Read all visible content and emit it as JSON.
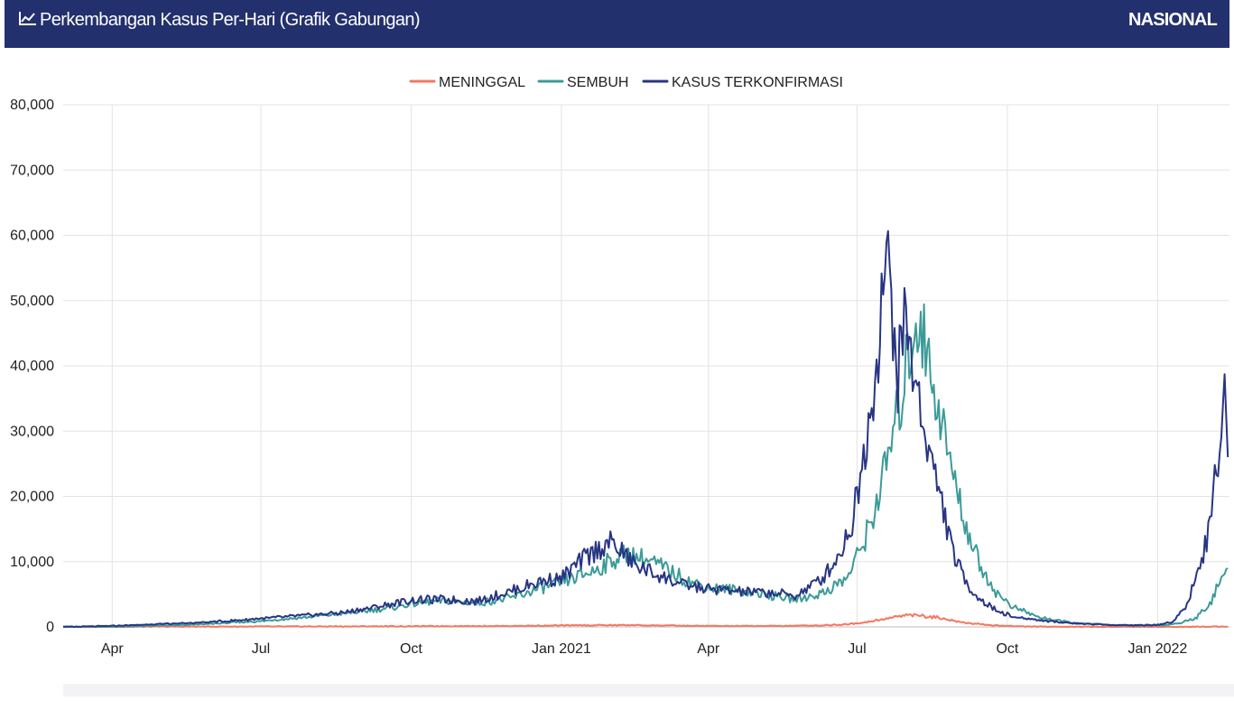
{
  "header": {
    "icon": "line-chart-icon",
    "title": "Perkembangan Kasus Per-Hari (Grafik Gabungan)",
    "badge": "NASIONAL",
    "background": "#23306e"
  },
  "chart_data": {
    "type": "line",
    "title": "Perkembangan Kasus Per-Hari (Grafik Gabungan)",
    "xlabel": "",
    "ylabel": "",
    "xlim": [
      "2020-03-02",
      "2022-02-14"
    ],
    "ylim": [
      0,
      80000
    ],
    "yticks": [
      0,
      10000,
      20000,
      30000,
      40000,
      50000,
      60000,
      70000,
      80000
    ],
    "ytick_labels": [
      "0",
      "10,000",
      "20,000",
      "30,000",
      "40,000",
      "50,000",
      "60,000",
      "70,000",
      "80,000"
    ],
    "xticks": [
      "2020-04-01",
      "2020-07-01",
      "2020-10-01",
      "2021-01-01",
      "2021-04-01",
      "2021-07-01",
      "2021-10-01",
      "2022-01-01"
    ],
    "xtick_labels": [
      "Apr",
      "Jul",
      "Oct",
      "Jan 2021",
      "Apr",
      "Jul",
      "Oct",
      "Jan 2022"
    ],
    "grid": true,
    "legend_position": "top-center",
    "series": [
      {
        "name": "MENINGGAL",
        "color": "#f4775f",
        "points": [
          [
            "2020-03-02",
            0
          ],
          [
            "2020-04-15",
            30
          ],
          [
            "2020-06-01",
            50
          ],
          [
            "2020-08-01",
            70
          ],
          [
            "2020-10-01",
            100
          ],
          [
            "2020-12-01",
            150
          ],
          [
            "2021-01-15",
            250
          ],
          [
            "2021-02-10",
            280
          ],
          [
            "2021-03-15",
            180
          ],
          [
            "2021-04-15",
            130
          ],
          [
            "2021-05-15",
            150
          ],
          [
            "2021-06-10",
            250
          ],
          [
            "2021-06-25",
            400
          ],
          [
            "2021-07-05",
            700
          ],
          [
            "2021-07-15",
            1100
          ],
          [
            "2021-07-25",
            1500
          ],
          [
            "2021-08-01",
            1800
          ],
          [
            "2021-08-10",
            1700
          ],
          [
            "2021-08-20",
            1400
          ],
          [
            "2021-08-30",
            900
          ],
          [
            "2021-09-10",
            500
          ],
          [
            "2021-09-25",
            200
          ],
          [
            "2021-10-10",
            80
          ],
          [
            "2021-11-01",
            30
          ],
          [
            "2021-12-01",
            10
          ],
          [
            "2022-01-01",
            5
          ],
          [
            "2022-01-25",
            20
          ],
          [
            "2022-02-13",
            70
          ]
        ]
      },
      {
        "name": "SEMBUH",
        "color": "#3c9b98",
        "points": [
          [
            "2020-03-02",
            0
          ],
          [
            "2020-04-01",
            20
          ],
          [
            "2020-04-20",
            150
          ],
          [
            "2020-05-15",
            300
          ],
          [
            "2020-06-10",
            600
          ],
          [
            "2020-07-01",
            900
          ],
          [
            "2020-07-25",
            1400
          ],
          [
            "2020-08-20",
            2000
          ],
          [
            "2020-09-15",
            2800
          ],
          [
            "2020-10-01",
            3500
          ],
          [
            "2020-10-20",
            4000
          ],
          [
            "2020-11-10",
            3700
          ],
          [
            "2020-12-01",
            4400
          ],
          [
            "2020-12-20",
            6000
          ],
          [
            "2021-01-01",
            6800
          ],
          [
            "2021-01-20",
            8500
          ],
          [
            "2021-02-01",
            10200
          ],
          [
            "2021-02-10",
            11200
          ],
          [
            "2021-02-20",
            10500
          ],
          [
            "2021-03-05",
            9000
          ],
          [
            "2021-03-20",
            7000
          ],
          [
            "2021-04-01",
            6000
          ],
          [
            "2021-04-20",
            5600
          ],
          [
            "2021-05-10",
            4800
          ],
          [
            "2021-05-25",
            4200
          ],
          [
            "2021-06-10",
            5200
          ],
          [
            "2021-06-25",
            7500
          ],
          [
            "2021-07-05",
            13000
          ],
          [
            "2021-07-12",
            18000
          ],
          [
            "2021-07-20",
            26000
          ],
          [
            "2021-07-28",
            35000
          ],
          [
            "2021-08-03",
            44000
          ],
          [
            "2021-08-08",
            48000
          ],
          [
            "2021-08-14",
            40000
          ],
          [
            "2021-08-20",
            34000
          ],
          [
            "2021-08-28",
            24000
          ],
          [
            "2021-09-05",
            16000
          ],
          [
            "2021-09-15",
            9000
          ],
          [
            "2021-09-25",
            5000
          ],
          [
            "2021-10-05",
            3000
          ],
          [
            "2021-10-20",
            1500
          ],
          [
            "2021-11-10",
            600
          ],
          [
            "2021-12-01",
            300
          ],
          [
            "2021-12-20",
            200
          ],
          [
            "2022-01-05",
            250
          ],
          [
            "2022-01-15",
            600
          ],
          [
            "2022-01-25",
            1500
          ],
          [
            "2022-02-03",
            4000
          ],
          [
            "2022-02-10",
            8000
          ],
          [
            "2022-02-13",
            9000
          ]
        ]
      },
      {
        "name": "KASUS TERKONFIRMASI",
        "color": "#283583",
        "points": [
          [
            "2020-03-02",
            0
          ],
          [
            "2020-04-01",
            150
          ],
          [
            "2020-04-20",
            350
          ],
          [
            "2020-05-15",
            550
          ],
          [
            "2020-06-10",
            900
          ],
          [
            "2020-07-01",
            1300
          ],
          [
            "2020-07-25",
            1700
          ],
          [
            "2020-08-20",
            2200
          ],
          [
            "2020-09-15",
            3300
          ],
          [
            "2020-10-01",
            4100
          ],
          [
            "2020-10-20",
            4200
          ],
          [
            "2020-11-10",
            3900
          ],
          [
            "2020-12-01",
            5500
          ],
          [
            "2020-12-20",
            7000
          ],
          [
            "2021-01-01",
            7500
          ],
          [
            "2021-01-15",
            10500
          ],
          [
            "2021-01-30",
            13000
          ],
          [
            "2021-02-05",
            12000
          ],
          [
            "2021-02-15",
            9500
          ],
          [
            "2021-03-01",
            8000
          ],
          [
            "2021-03-15",
            6500
          ],
          [
            "2021-04-01",
            5800
          ],
          [
            "2021-04-20",
            5400
          ],
          [
            "2021-05-10",
            5200
          ],
          [
            "2021-05-25",
            4800
          ],
          [
            "2021-06-10",
            7500
          ],
          [
            "2021-06-20",
            11000
          ],
          [
            "2021-06-28",
            16000
          ],
          [
            "2021-07-05",
            26000
          ],
          [
            "2021-07-10",
            35000
          ],
          [
            "2021-07-13",
            40000
          ],
          [
            "2021-07-16",
            51000
          ],
          [
            "2021-07-19",
            56000
          ],
          [
            "2021-07-22",
            50000
          ],
          [
            "2021-07-26",
            38000
          ],
          [
            "2021-07-30",
            48000
          ],
          [
            "2021-08-04",
            40000
          ],
          [
            "2021-08-10",
            32000
          ],
          [
            "2021-08-16",
            25000
          ],
          [
            "2021-08-22",
            19000
          ],
          [
            "2021-08-28",
            12000
          ],
          [
            "2021-09-05",
            7000
          ],
          [
            "2021-09-15",
            4000
          ],
          [
            "2021-09-25",
            2500
          ],
          [
            "2021-10-05",
            1500
          ],
          [
            "2021-10-25",
            900
          ],
          [
            "2021-11-15",
            500
          ],
          [
            "2021-12-10",
            250
          ],
          [
            "2022-01-01",
            300
          ],
          [
            "2022-01-10",
            800
          ],
          [
            "2022-01-18",
            3000
          ],
          [
            "2022-01-25",
            8000
          ],
          [
            "2022-02-01",
            14000
          ],
          [
            "2022-02-07",
            27000
          ],
          [
            "2022-02-11",
            36000
          ],
          [
            "2022-02-13",
            26000
          ]
        ]
      }
    ]
  }
}
